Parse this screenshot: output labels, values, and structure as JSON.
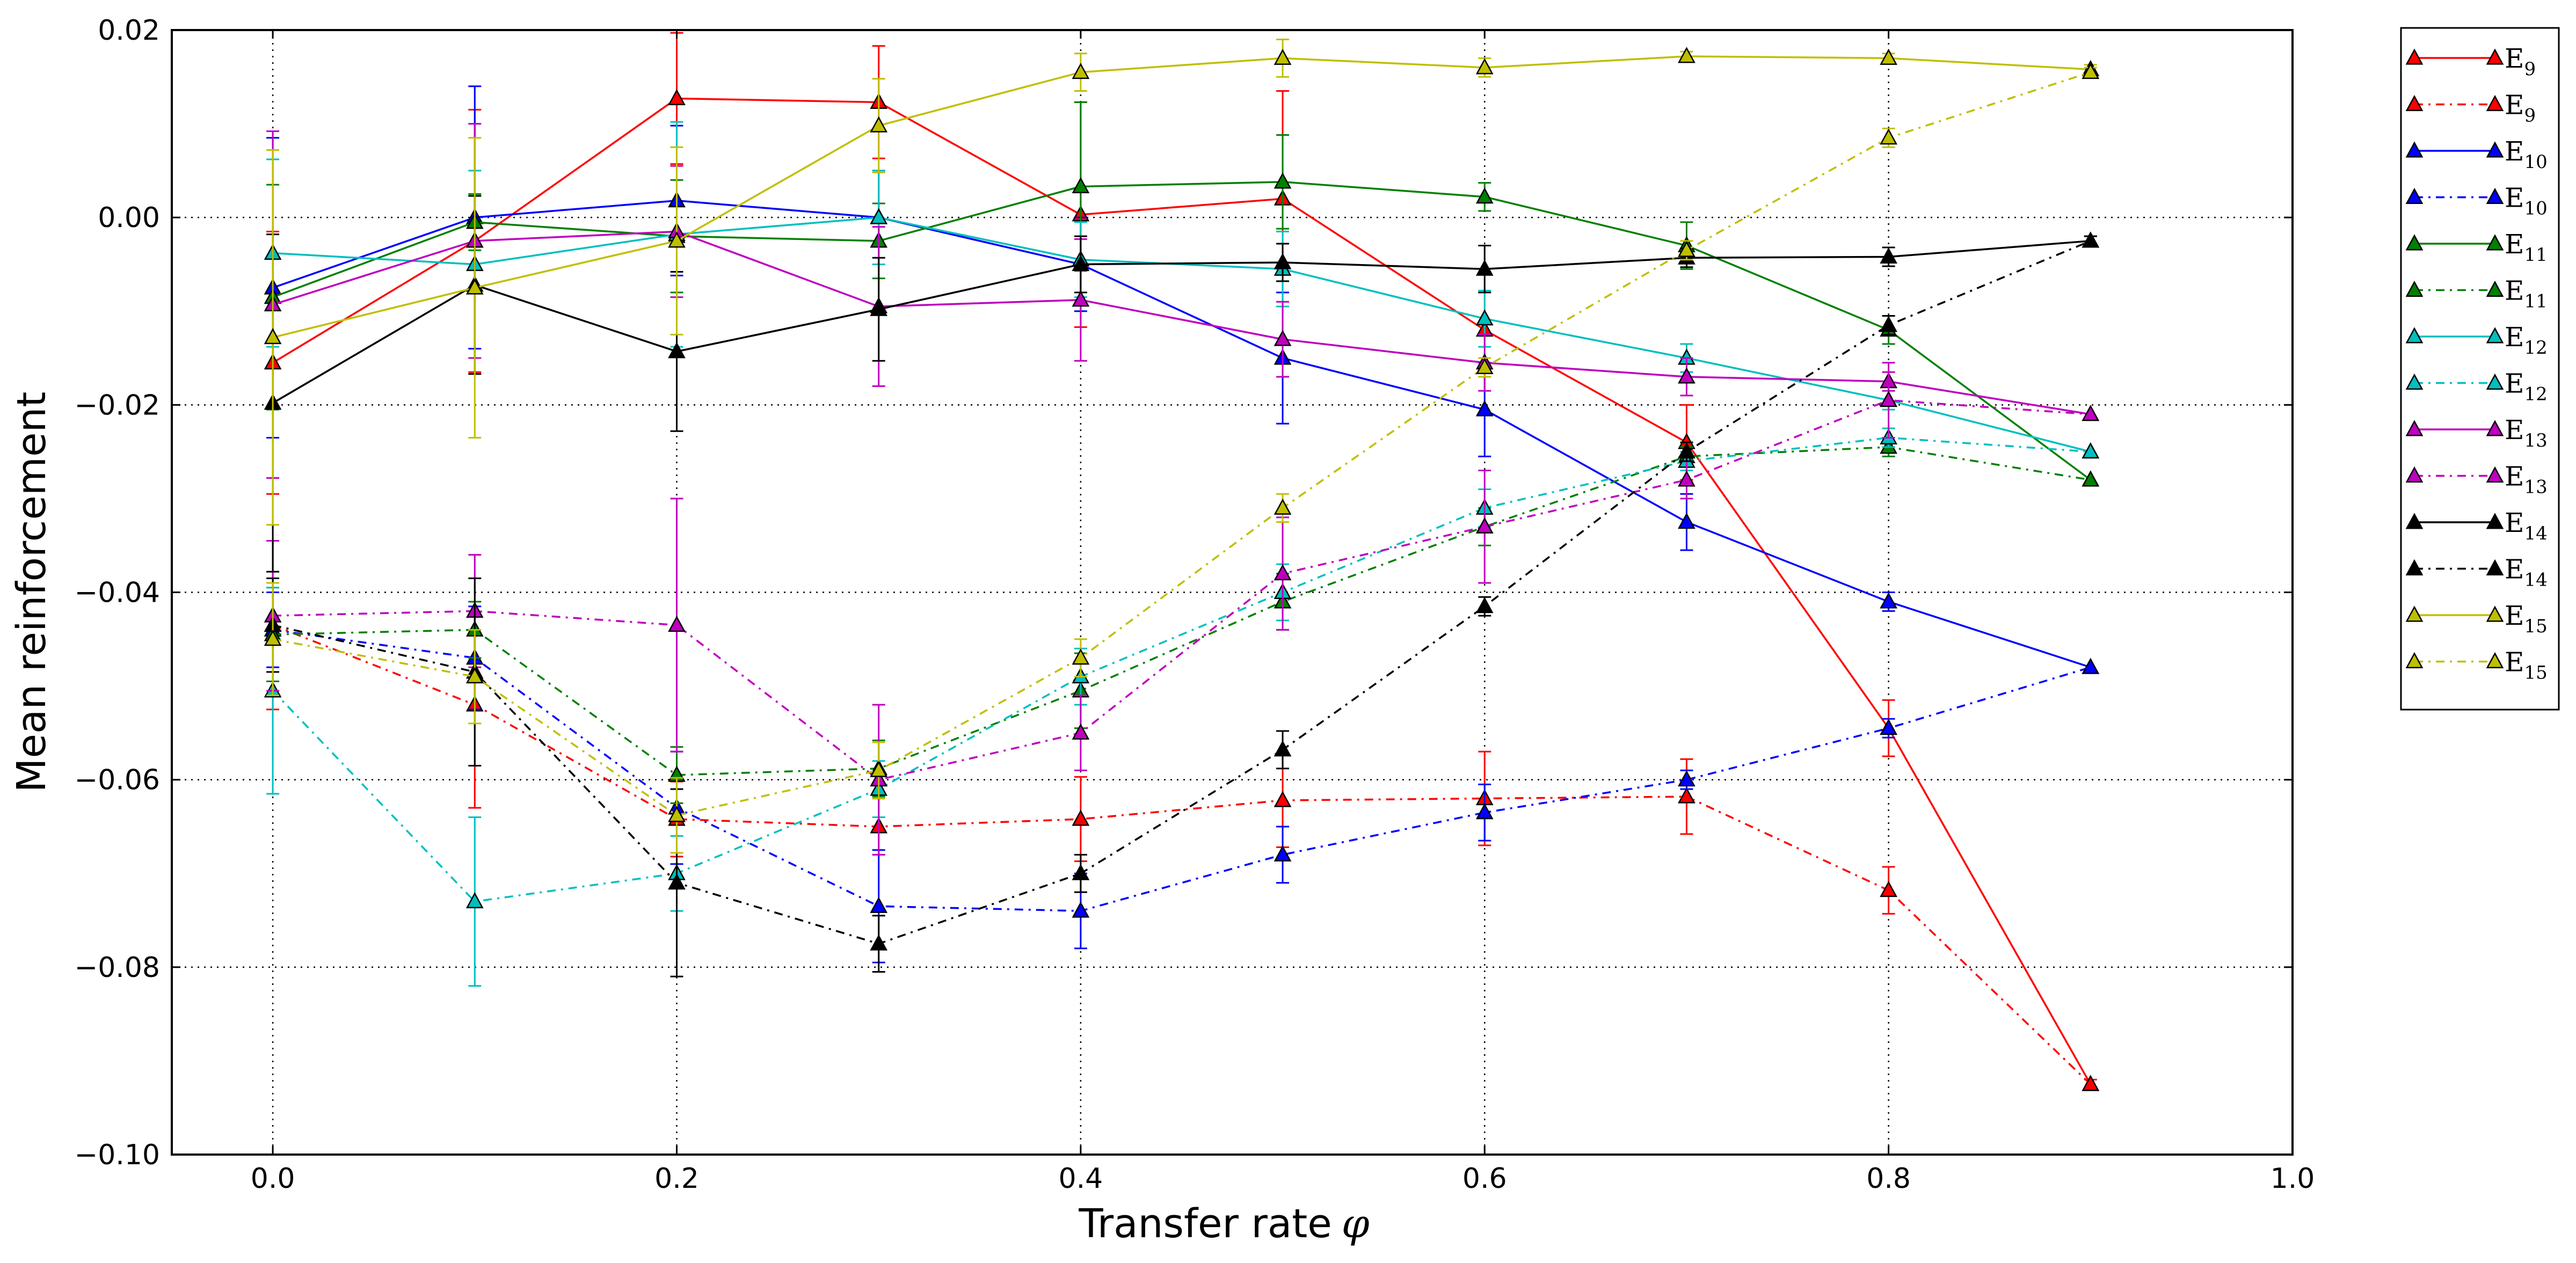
{
  "chart_data": {
    "type": "line",
    "title": "",
    "xlabel": "Transfer rate",
    "xlabel_symbol": "φ",
    "ylabel": "Mean reinforcement",
    "xlim": [
      -0.05,
      1.0
    ],
    "ylim": [
      -0.1,
      0.02
    ],
    "x_ticks": [
      0.0,
      0.2,
      0.4,
      0.6,
      0.8,
      1.0
    ],
    "x_tick_labels": [
      "0.0",
      "0.2",
      "0.4",
      "0.6",
      "0.8",
      "1.0"
    ],
    "y_ticks": [
      0.02,
      0.0,
      -0.02,
      -0.04,
      -0.06,
      -0.08,
      -0.1
    ],
    "y_tick_labels": [
      "0.02",
      "0.00",
      "−0.02",
      "−0.04",
      "−0.06",
      "−0.08",
      "−0.10"
    ],
    "grid": true,
    "legend_position": "outside-right",
    "marker": "triangle",
    "x": [
      0.0,
      0.1,
      0.2,
      0.3,
      0.4,
      0.5,
      0.6,
      0.7,
      0.8,
      0.9
    ],
    "series": [
      {
        "name": "E",
        "sub": "9",
        "color": "#ff0000",
        "style": "solid",
        "values": [
          -0.0155,
          -0.0025,
          0.0127,
          0.0123,
          0.0003,
          0.002,
          -0.012,
          -0.024,
          -0.0545,
          -0.0925
        ],
        "errors": [
          0.014,
          0.014,
          0.007,
          0.006,
          0.012,
          0.0115,
          0.0,
          0.004,
          0.003,
          0.0
        ]
      },
      {
        "name": "E",
        "sub": "9",
        "color": "#ff0000",
        "style": "dashdot",
        "values": [
          -0.0435,
          -0.052,
          -0.0642,
          -0.065,
          -0.0642,
          -0.0622,
          -0.062,
          -0.0618,
          -0.0718,
          -0.0925
        ],
        "errors": [
          0.009,
          0.011,
          0.004,
          0.003,
          0.0045,
          0.005,
          0.005,
          0.004,
          0.0025,
          0.0005
        ]
      },
      {
        "name": "E",
        "sub": "10",
        "color": "#0000ff",
        "style": "solid",
        "values": [
          -0.0075,
          0.0,
          0.0018,
          0.0,
          -0.005,
          -0.015,
          -0.0205,
          -0.0325,
          -0.041,
          -0.048
        ],
        "errors": [
          0.016,
          0.014,
          0.008,
          0.005,
          0.005,
          0.007,
          0.005,
          0.003,
          0.001,
          0.0
        ]
      },
      {
        "name": "E",
        "sub": "10",
        "color": "#0000ff",
        "style": "dashdot",
        "values": [
          -0.044,
          -0.047,
          -0.063,
          -0.0735,
          -0.074,
          -0.068,
          -0.0635,
          -0.06,
          -0.0545,
          -0.048
        ],
        "errors": [
          0.004,
          0.0055,
          0.006,
          0.006,
          0.004,
          0.003,
          0.003,
          0.001,
          0.001,
          0.0
        ]
      },
      {
        "name": "E",
        "sub": "11",
        "color": "#008000",
        "style": "solid",
        "values": [
          -0.0085,
          -0.0005,
          -0.002,
          -0.0025,
          0.0033,
          0.0038,
          0.0022,
          -0.003,
          -0.012,
          -0.028
        ],
        "errors": [
          0.012,
          0.003,
          0.006,
          0.004,
          0.009,
          0.005,
          0.0015,
          0.0025,
          0.0015,
          0.0
        ]
      },
      {
        "name": "E",
        "sub": "11",
        "color": "#008000",
        "style": "dashdot",
        "values": [
          -0.0445,
          -0.044,
          -0.0595,
          -0.0588,
          -0.0505,
          -0.041,
          -0.033,
          -0.0255,
          -0.0245,
          -0.028
        ],
        "errors": [
          0.005,
          0.003,
          0.003,
          0.003,
          0.004,
          0.003,
          0.002,
          0.001,
          0.001,
          0.0
        ]
      },
      {
        "name": "E",
        "sub": "12",
        "color": "#00bfbf",
        "style": "solid",
        "values": [
          -0.0038,
          -0.005,
          -0.0018,
          0.0,
          -0.0045,
          -0.0055,
          -0.0108,
          -0.015,
          -0.0195,
          -0.025
        ],
        "errors": [
          0.01,
          0.01,
          0.012,
          0.005,
          0.004,
          0.004,
          0.003,
          0.0015,
          0.001,
          0.0
        ]
      },
      {
        "name": "E",
        "sub": "12",
        "color": "#00bfbf",
        "style": "dashdot",
        "values": [
          -0.0505,
          -0.073,
          -0.07,
          -0.061,
          -0.049,
          -0.04,
          -0.031,
          -0.026,
          -0.0235,
          -0.025
        ],
        "errors": [
          0.011,
          0.009,
          0.004,
          0.003,
          0.003,
          0.003,
          0.002,
          0.001,
          0.001,
          0.0
        ]
      },
      {
        "name": "E",
        "sub": "13",
        "color": "#bf00bf",
        "style": "solid",
        "values": [
          -0.0093,
          -0.0025,
          -0.0015,
          -0.0095,
          -0.0088,
          -0.013,
          -0.0155,
          -0.017,
          -0.0175,
          -0.021
        ],
        "errors": [
          0.0185,
          0.0125,
          0.007,
          0.0085,
          0.0065,
          0.004,
          0.003,
          0.002,
          0.001,
          0.0
        ]
      },
      {
        "name": "E",
        "sub": "13",
        "color": "#bf00bf",
        "style": "dashdot",
        "values": [
          -0.0425,
          -0.042,
          -0.0435,
          -0.06,
          -0.055,
          -0.038,
          -0.033,
          -0.028,
          -0.0195,
          -0.021
        ],
        "errors": [
          0.008,
          0.006,
          0.0135,
          0.008,
          0.004,
          0.006,
          0.006,
          0.002,
          0.004,
          0.0
        ]
      },
      {
        "name": "E",
        "sub": "14",
        "color": "#000000",
        "style": "solid",
        "values": [
          -0.0198,
          -0.0072,
          -0.0143,
          -0.0098,
          -0.005,
          -0.0048,
          -0.0055,
          -0.0043,
          -0.0042,
          -0.0025
        ],
        "errors": [
          0.018,
          0.0095,
          0.0085,
          0.0055,
          0.003,
          0.002,
          0.0025,
          0.001,
          0.001,
          0.0005
        ]
      },
      {
        "name": "E",
        "sub": "14",
        "color": "#000000",
        "style": "dashdot",
        "values": [
          -0.0435,
          -0.0485,
          -0.071,
          -0.0775,
          -0.07,
          -0.0568,
          -0.0415,
          -0.025,
          -0.0115,
          -0.0025
        ],
        "errors": [
          0.005,
          0.01,
          0.01,
          0.003,
          0.002,
          0.002,
          0.001,
          0.001,
          0.001,
          0.0005
        ]
      },
      {
        "name": "E",
        "sub": "15",
        "color": "#bfbf00",
        "style": "solid",
        "values": [
          -0.0128,
          -0.0075,
          -0.0025,
          0.0098,
          0.0155,
          0.017,
          0.016,
          0.0172,
          0.017,
          0.0158
        ],
        "errors": [
          0.02,
          0.016,
          0.01,
          0.005,
          0.002,
          0.002,
          0.001,
          0.0005,
          0.0005,
          0.0005
        ]
      },
      {
        "name": "E",
        "sub": "15",
        "color": "#bfbf00",
        "style": "dashdot",
        "values": [
          -0.045,
          -0.049,
          -0.0638,
          -0.059,
          -0.047,
          -0.031,
          -0.016,
          -0.0035,
          0.0085,
          0.0155
        ],
        "errors": [
          0.006,
          0.005,
          0.004,
          0.003,
          0.002,
          0.0015,
          0.001,
          0.001,
          0.001,
          0.0005
        ]
      }
    ]
  }
}
